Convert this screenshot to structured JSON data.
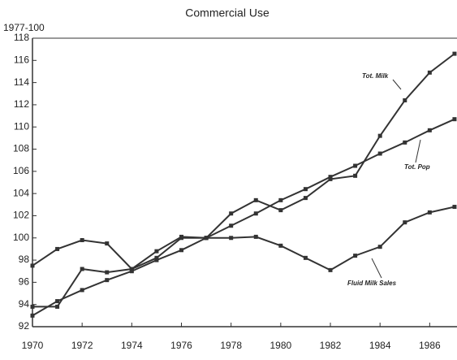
{
  "chart_data": {
    "type": "line",
    "title": "Commercial Use",
    "y_axis_label": "1977-100",
    "x": [
      1970,
      1971,
      1972,
      1973,
      1974,
      1975,
      1976,
      1977,
      1978,
      1979,
      1980,
      1981,
      1982,
      1983,
      1984,
      1985,
      1986,
      1987
    ],
    "series": [
      {
        "name": "Tot. Milk",
        "color": "#333333",
        "values": [
          93.8,
          93.8,
          97.2,
          96.9,
          97.2,
          98.8,
          100.1,
          100,
          102.2,
          103.4,
          102.5,
          103.6,
          105.3,
          105.6,
          109.2,
          112.4,
          114.9,
          116.6
        ]
      },
      {
        "name": "Tot. Pop",
        "color": "#333333",
        "values": [
          93,
          94.3,
          95.3,
          96.2,
          97,
          98,
          98.9,
          100,
          101.1,
          102.2,
          103.4,
          104.4,
          105.5,
          106.5,
          107.6,
          108.6,
          109.7,
          110.7
        ]
      },
      {
        "name": "Fluid Milk Sales",
        "color": "#333333",
        "values": [
          97.5,
          99,
          99.8,
          99.5,
          97.2,
          98.2,
          100,
          100,
          100,
          100.1,
          99.3,
          98.2,
          97.1,
          98.4,
          99.2,
          101.4,
          102.3,
          102.8
        ]
      }
    ],
    "xlim": [
      1970,
      1987.1
    ],
    "xticks": [
      1970,
      1972,
      1974,
      1976,
      1978,
      1980,
      1982,
      1984,
      1986
    ],
    "ylim": [
      92,
      118
    ],
    "yticks": [
      92,
      94,
      96,
      98,
      100,
      102,
      104,
      106,
      108,
      110,
      112,
      114,
      116,
      118
    ]
  }
}
